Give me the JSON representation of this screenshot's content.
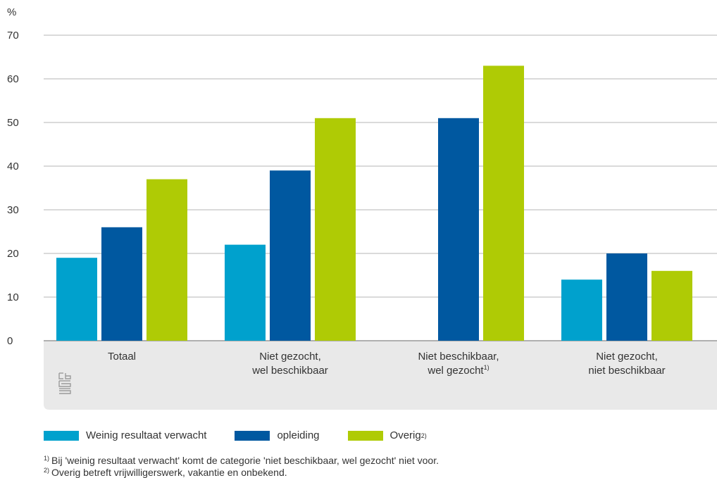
{
  "chart_data": {
    "type": "bar",
    "ylabel": "%",
    "ylim": [
      0,
      70
    ],
    "yticks": [
      0,
      10,
      20,
      30,
      40,
      50,
      60,
      70
    ],
    "categories": [
      {
        "lines": [
          "Totaal"
        ],
        "sup": ""
      },
      {
        "lines": [
          "Niet gezocht,",
          "wel beschikbaar"
        ],
        "sup": ""
      },
      {
        "lines": [
          "Niet beschikbaar,",
          "wel gezocht"
        ],
        "sup": "1)"
      },
      {
        "lines": [
          "Niet gezocht,",
          "niet beschikbaar"
        ],
        "sup": ""
      }
    ],
    "series": [
      {
        "name": "Weinig resultaat verwacht",
        "sup": "",
        "color": "#00a1cd",
        "values": [
          19,
          22,
          null,
          14
        ]
      },
      {
        "name": "opleiding",
        "sup": "",
        "color": "#0058a0",
        "values": [
          26,
          39,
          51,
          20
        ]
      },
      {
        "name": "Overig",
        "sup": "2)",
        "color": "#afcb05",
        "values": [
          37,
          51,
          63,
          16
        ]
      }
    ],
    "grid": true,
    "legend_position": "bottom"
  },
  "footnotes": [
    {
      "sup": "1)",
      "text": "Bij 'weinig resultaat verwacht' komt de categorie 'niet beschikbaar, wel gezocht' niet voor."
    },
    {
      "sup": "2)",
      "text": "Overig betreft vrijwilligerswerk, vakantie en onbekend."
    }
  ],
  "logo": "cbs-logo-icon"
}
